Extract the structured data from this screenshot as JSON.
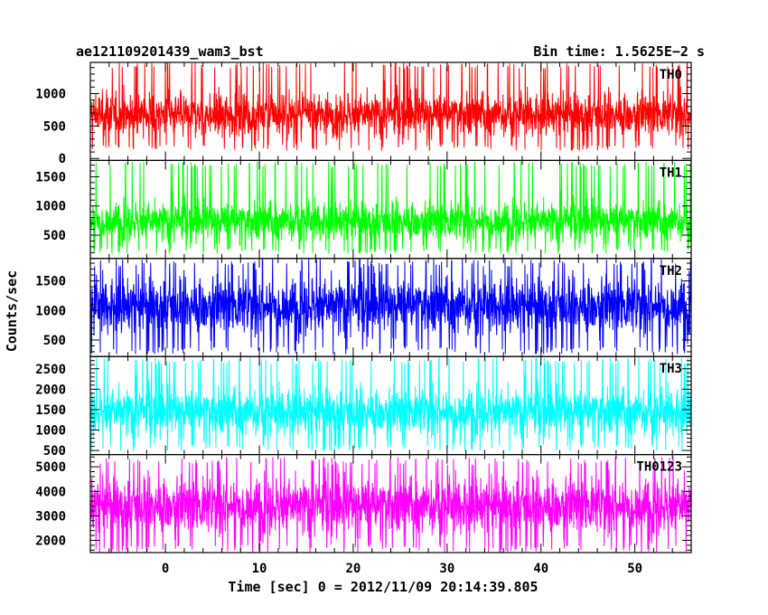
{
  "header": {
    "title": "ae121109201439_wam3_bst",
    "bin_time": "Bin time: 1.5625E−2 s"
  },
  "chart_data": {
    "type": "line",
    "title": "ae121109201439_wam3_bst",
    "xlabel": "Time [sec] 0 = 2012/11/09 20:14:39.805",
    "ylabel": "Counts/sec",
    "xlim": [
      -8,
      56
    ],
    "x_ticks": [
      0,
      10,
      20,
      30,
      40,
      50
    ],
    "x_tick_labels": [
      "0",
      "10",
      "20",
      "30",
      "40",
      "50"
    ],
    "bin_time_s": 0.015625,
    "grid": false,
    "panels": [
      {
        "name": "TH0",
        "color": "#ff0000",
        "ylim": [
          -30,
          1480
        ],
        "y_ticks": [
          0,
          500,
          1000
        ],
        "y_tick_labels": [
          "0",
          "500",
          "1000"
        ],
        "mean": 680,
        "low": 120,
        "high": 1480,
        "x_start": -8,
        "x_end": 56
      },
      {
        "name": "TH1",
        "color": "#00ff00",
        "ylim": [
          100,
          1780
        ],
        "y_ticks": [
          500,
          1000,
          1500
        ],
        "y_tick_labels": [
          "500",
          "1000",
          "1500"
        ],
        "mean": 740,
        "low": 180,
        "high": 1760,
        "x_start": -8,
        "x_end": 56
      },
      {
        "name": "TH2",
        "color": "#0000ff",
        "ylim": [
          220,
          1880
        ],
        "y_ticks": [
          500,
          1000,
          1500
        ],
        "y_tick_labels": [
          "500",
          "1000",
          "1500"
        ],
        "mean": 1080,
        "low": 260,
        "high": 1880,
        "x_start": -8,
        "x_end": 56
      },
      {
        "name": "TH3",
        "color": "#00ffff",
        "ylim": [
          400,
          2800
        ],
        "y_ticks": [
          500,
          1000,
          1500,
          2000,
          2500
        ],
        "y_tick_labels": [
          "500",
          "1000",
          "1500",
          "2000",
          "2500"
        ],
        "mean": 1450,
        "low": 480,
        "high": 2780,
        "x_start": -8,
        "x_end": 56
      },
      {
        "name": "TH0123",
        "color": "#ff00ff",
        "ylim": [
          1500,
          5500
        ],
        "y_ticks": [
          2000,
          3000,
          4000,
          5000
        ],
        "y_tick_labels": [
          "2000",
          "3000",
          "4000",
          "5000"
        ],
        "mean": 3420,
        "low": 1500,
        "high": 5400,
        "x_start": -8,
        "x_end": 56
      }
    ]
  }
}
